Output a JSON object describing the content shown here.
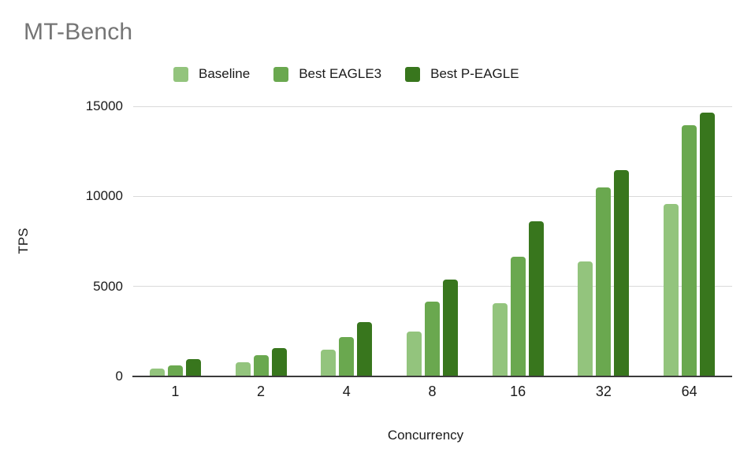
{
  "chart_data": {
    "type": "bar",
    "title": "MT-Bench",
    "xlabel": "Concurrency",
    "ylabel": "TPS",
    "categories": [
      "1",
      "2",
      "4",
      "8",
      "16",
      "32",
      "64"
    ],
    "series": [
      {
        "name": "Baseline",
        "color": "#93c47d",
        "values": [
          450,
          790,
          1490,
          2500,
          4090,
          6390,
          9600
        ]
      },
      {
        "name": "Best EAGLE3",
        "color": "#6aa84f",
        "values": [
          630,
          1190,
          2190,
          4170,
          6650,
          10500,
          13950
        ]
      },
      {
        "name": "Best P-EAGLE",
        "color": "#38761d",
        "values": [
          980,
          1560,
          3040,
          5400,
          8600,
          11450,
          14650
        ]
      }
    ],
    "ylim": [
      0,
      15000
    ],
    "yticks": [
      0,
      5000,
      10000,
      15000
    ],
    "grid": true,
    "legend_position": "top",
    "colors": {
      "title_text": "#757575",
      "axis_text": "#1a1a1a",
      "gridline": "#d9d9d9",
      "axis_line": "#3b3b3b",
      "background": "#ffffff"
    }
  }
}
